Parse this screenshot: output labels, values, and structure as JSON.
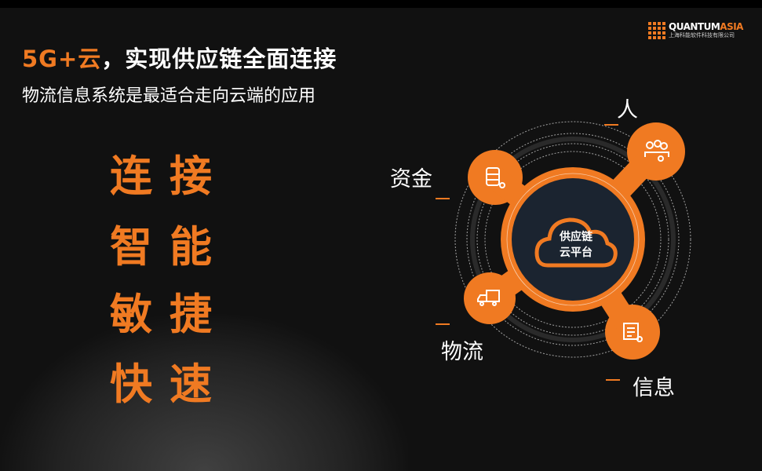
{
  "header": {
    "title_accent": "5G+云",
    "title_rest": "，实现供应链全面连接",
    "subtitle": "物流信息系统是最适合走向云端的应用"
  },
  "logo": {
    "name_a": "QUANTUM",
    "name_b": "ASIA",
    "company": "上海科能软件科技有限公司"
  },
  "keywords": [
    "连接",
    "智能",
    "敏捷",
    "快速"
  ],
  "diagram": {
    "center": [
      "供应链",
      "云平台"
    ],
    "nodes": [
      {
        "label": "人",
        "icon": "people-link-icon"
      },
      {
        "label": "资金",
        "icon": "database-link-icon"
      },
      {
        "label": "物流",
        "icon": "truck-link-icon"
      },
      {
        "label": "信息",
        "icon": "document-link-icon"
      }
    ]
  },
  "colors": {
    "accent": "#f07a22",
    "center": "#1b2430",
    "background": "#111111"
  }
}
